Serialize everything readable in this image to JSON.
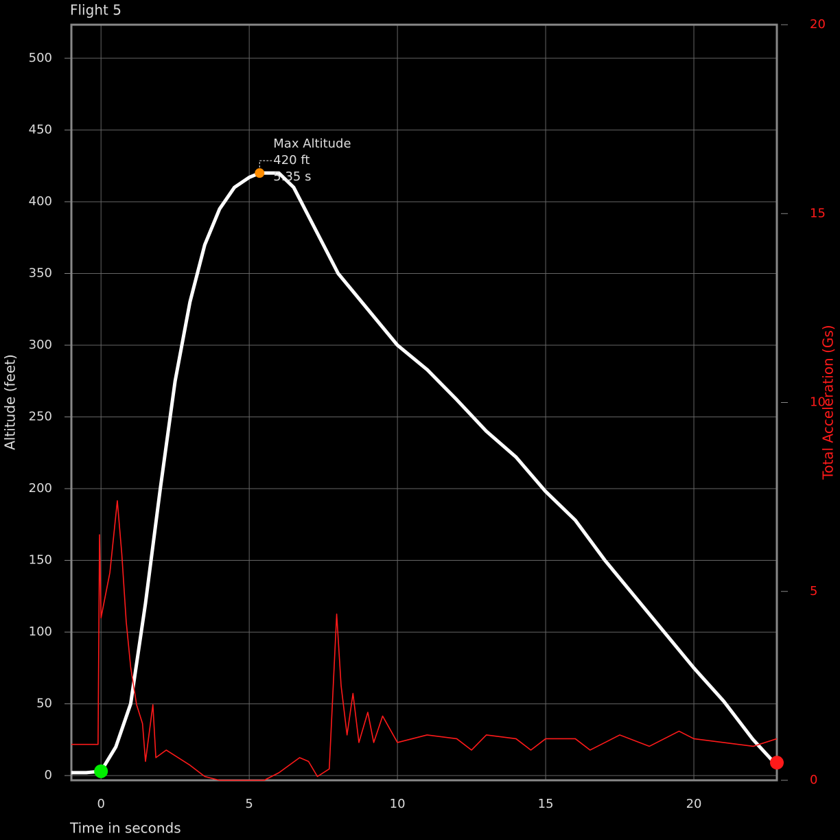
{
  "chart_data": {
    "type": "line",
    "title": "Flight 5",
    "x_label": "Time in seconds",
    "y_label": "Altitude (feet)",
    "y2_label": "Total Acceleration (Gs)",
    "xlim": [
      -1,
      22.8
    ],
    "xticks": [
      0,
      5,
      10,
      15,
      20
    ],
    "ylim": [
      -3.3,
      523.4
    ],
    "yticks": [
      0,
      50,
      100,
      150,
      200,
      250,
      300,
      350,
      400,
      450,
      500
    ],
    "y2lim": [
      0,
      20
    ],
    "y2ticks": [
      0,
      5,
      10,
      15,
      20
    ],
    "grid": true,
    "series": [
      {
        "name": "Altitude",
        "color": "#ffffff",
        "axis": "y",
        "x": [
          -1,
          -0.5,
          0,
          0.5,
          1,
          1.5,
          2,
          2.5,
          3,
          3.5,
          4,
          4.5,
          5,
          5.35,
          6,
          6.5,
          7,
          7.5,
          8,
          9,
          10,
          11,
          12,
          13,
          14,
          15,
          16,
          17,
          18,
          19,
          20,
          21,
          22,
          22.8
        ],
        "values": [
          2,
          2,
          3,
          20,
          50,
          120,
          200,
          275,
          330,
          370,
          395,
          410,
          417,
          420,
          420,
          410,
          390,
          370,
          350,
          325,
          300,
          283,
          262,
          240,
          222,
          198,
          178,
          150,
          125,
          100,
          75,
          52,
          25,
          7
        ]
      },
      {
        "name": "Total Acceleration",
        "color": "#ff1a1a",
        "axis": "y2",
        "x": [
          -1,
          -0.1,
          -0.05,
          0,
          0.3,
          0.55,
          0.7,
          0.85,
          1.0,
          1.2,
          1.4,
          1.5,
          1.75,
          1.85,
          2.2,
          3,
          3.5,
          4,
          5.5,
          6,
          6.7,
          7,
          7.3,
          7.7,
          7.95,
          8.1,
          8.3,
          8.5,
          8.7,
          9,
          9.2,
          9.5,
          10,
          11,
          12,
          12.5,
          13,
          14,
          14.5,
          15,
          16,
          16.5,
          17.5,
          18.5,
          19.5,
          20,
          21,
          22,
          22.8
        ],
        "values": [
          0.95,
          0.95,
          6.5,
          4.3,
          5.5,
          7.4,
          6,
          4.2,
          3,
          2,
          1.5,
          0.5,
          2,
          0.6,
          0.8,
          0.4,
          0.1,
          0,
          0,
          0.2,
          0.6,
          0.5,
          0.1,
          0.3,
          4.4,
          2.5,
          1.2,
          2.3,
          1.0,
          1.8,
          1.0,
          1.7,
          1.0,
          1.2,
          1.1,
          0.8,
          1.2,
          1.1,
          0.8,
          1.1,
          1.1,
          0.8,
          1.2,
          0.9,
          1.3,
          1.1,
          1.0,
          0.9,
          1.1
        ]
      }
    ],
    "markers": [
      {
        "x": 0,
        "y": 3,
        "color": "#00ee00"
      },
      {
        "x": 5.35,
        "y": 420,
        "color": "#ff8c00"
      },
      {
        "x": 22.8,
        "y": 9,
        "color": "#ff1a1a"
      }
    ],
    "annotation": [
      "Max Altitude",
      "420 ft",
      "5.35  s"
    ]
  }
}
